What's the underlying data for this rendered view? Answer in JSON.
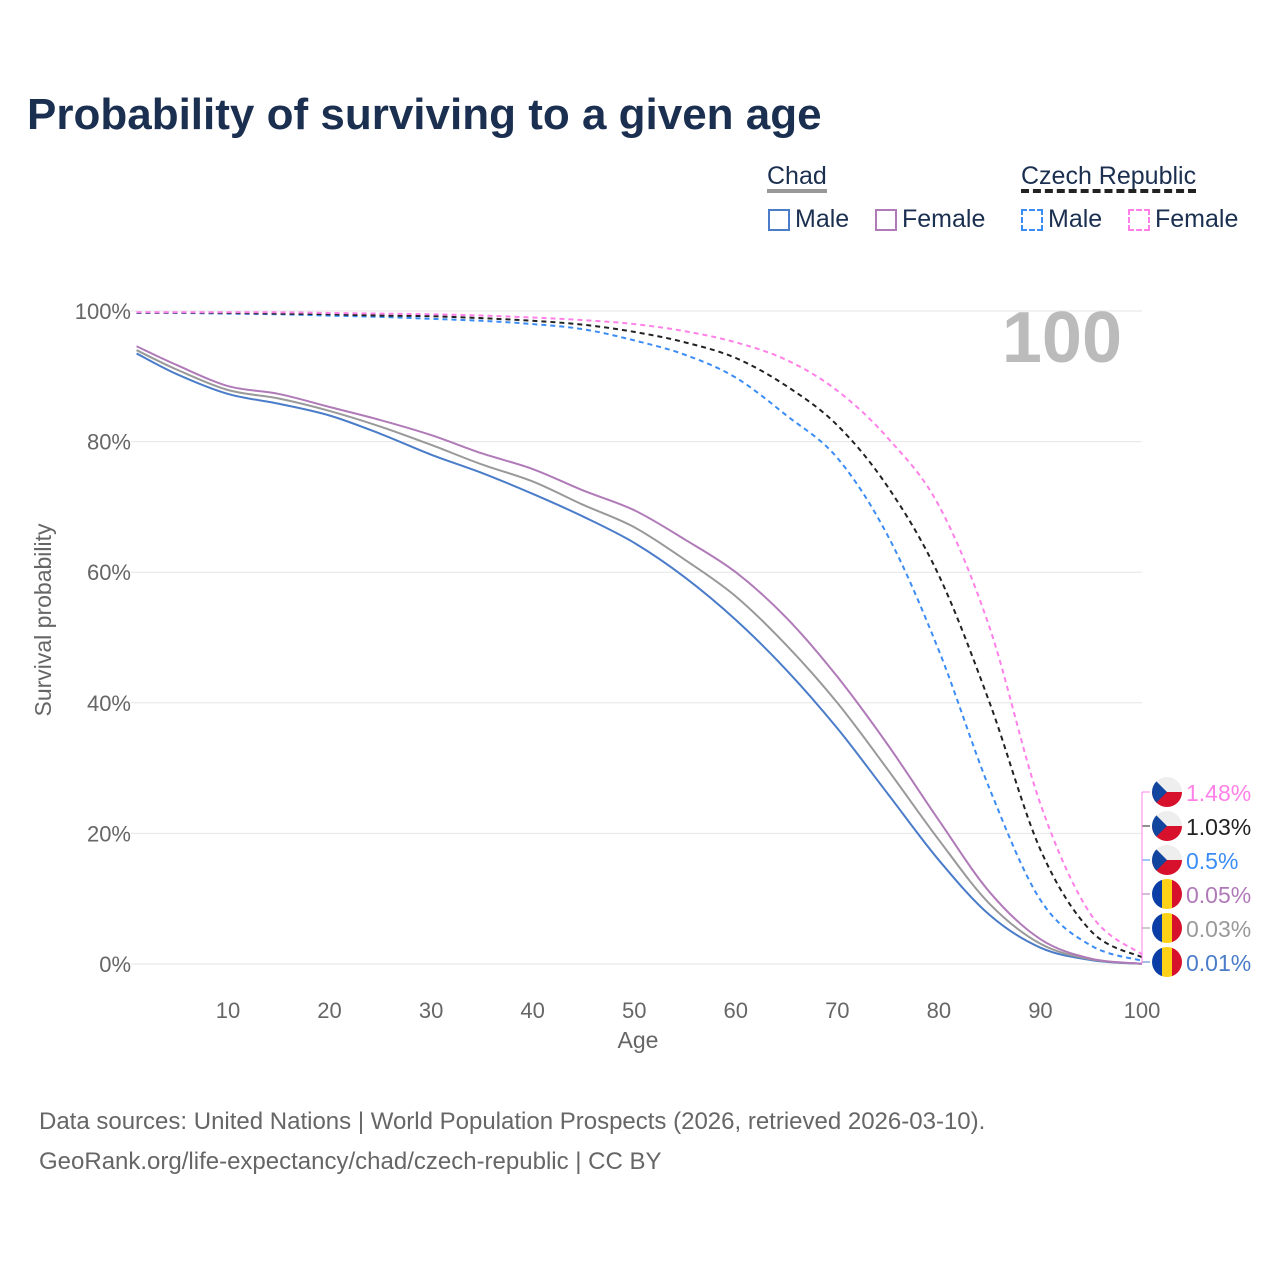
{
  "title": "Probability of surviving to a given age",
  "legend": {
    "chad": {
      "label": "Chad",
      "male": "Male",
      "female": "Female"
    },
    "czech": {
      "label": "Czech Republic",
      "male": "Male",
      "female": "Female"
    }
  },
  "age_indicator": "100",
  "sources": [
    "Data sources: United Nations | World Population Prospects (2026, retrieved 2026-03-10).",
    "GeoRank.org/life-expectancy/chad/czech-republic | CC BY"
  ],
  "chart_data": {
    "type": "line",
    "title": "Probability of surviving to a given age",
    "xlabel": "Age",
    "ylabel": "Survival probability",
    "xlim": [
      0,
      100
    ],
    "ylim": [
      0,
      100
    ],
    "xticks": [
      10,
      20,
      30,
      40,
      50,
      60,
      70,
      80,
      90,
      100
    ],
    "yticks": [
      0,
      20,
      40,
      60,
      80,
      100
    ],
    "ytick_labels": [
      "0%",
      "20%",
      "40%",
      "60%",
      "80%",
      "100%"
    ],
    "x": [
      1,
      5,
      10,
      15,
      20,
      25,
      30,
      35,
      40,
      45,
      50,
      55,
      60,
      65,
      70,
      75,
      80,
      85,
      90,
      95,
      100
    ],
    "series": [
      {
        "name": "Chad Male",
        "color": "#4a7cc9",
        "dash": false,
        "end_label": "0.01%",
        "flag": "chad",
        "values": [
          93.5,
          90.3,
          87.3,
          85.8,
          84,
          81.2,
          78,
          75.2,
          72,
          68.5,
          64.5,
          59.2,
          52.7,
          45,
          36.1,
          26,
          15.9,
          7.5,
          2.5,
          0.6,
          0.01
        ]
      },
      {
        "name": "Chad Both",
        "color": "#999999",
        "dash": false,
        "end_label": "0.03%",
        "flag": "chad",
        "values": [
          94,
          91,
          87.9,
          86.6,
          84.7,
          82.3,
          79.5,
          76.5,
          73.9,
          70.3,
          66.9,
          61.9,
          56.3,
          48.8,
          40,
          29.7,
          19,
          9.2,
          3.1,
          0.7,
          0.03
        ]
      },
      {
        "name": "Chad Female",
        "color": "#b07ab8",
        "dash": false,
        "end_label": "0.05%",
        "flag": "chad",
        "values": [
          94.6,
          91.7,
          88.5,
          87.3,
          85.3,
          83.3,
          81,
          78.2,
          75.8,
          72.5,
          69.5,
          65,
          60,
          53,
          44,
          33.5,
          22,
          11,
          3.8,
          0.8,
          0.05
        ]
      },
      {
        "name": "Czech Male",
        "color": "#3b8cf5",
        "dash": true,
        "end_label": "0.5%",
        "flag": "czech",
        "values": [
          99.7,
          99.7,
          99.6,
          99.5,
          99.3,
          99.1,
          98.8,
          98.5,
          98,
          97.2,
          95.5,
          93.3,
          89.8,
          84,
          77.5,
          65.5,
          48,
          26.8,
          9.8,
          2.8,
          0.5
        ]
      },
      {
        "name": "Czech Both",
        "color": "#222222",
        "dash": true,
        "end_label": "1.03%",
        "flag": "czech",
        "values": [
          99.75,
          99.75,
          99.7,
          99.6,
          99.5,
          99.3,
          99.2,
          98.9,
          98.5,
          97.9,
          96.8,
          95.2,
          92.8,
          88.5,
          82.5,
          73,
          59.5,
          40,
          17.5,
          5,
          1.03
        ]
      },
      {
        "name": "Czech Female",
        "color": "#ff80e8",
        "dash": true,
        "end_label": "1.48%",
        "flag": "czech",
        "values": [
          99.8,
          99.8,
          99.8,
          99.8,
          99.7,
          99.6,
          99.5,
          99.3,
          99,
          98.6,
          98,
          96.9,
          95.2,
          92.5,
          87.8,
          80.5,
          70.2,
          51.5,
          24.5,
          7.5,
          1.48
        ]
      }
    ]
  }
}
